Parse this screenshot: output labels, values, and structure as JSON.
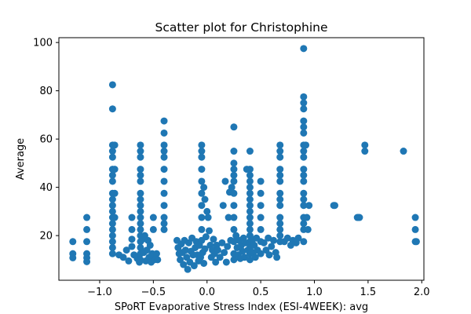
{
  "chart_data": {
    "type": "scatter",
    "title": "Scatter plot for Christophine",
    "xlabel": "SPoRT Evaporative Stress Index (ESI-4WEEK): avg",
    "ylabel": "Average",
    "xlim": [
      -1.38,
      2.02
    ],
    "ylim": [
      1.5,
      102
    ],
    "xticks": [
      -1.0,
      -0.5,
      0.0,
      0.5,
      1.0,
      1.5,
      2.0
    ],
    "xtick_labels": [
      "−1.0",
      "−0.5",
      "0.0",
      "0.5",
      "1.0",
      "1.5",
      "2.0"
    ],
    "yticks": [
      20,
      40,
      60,
      80,
      100
    ],
    "ytick_labels": [
      "20",
      "40",
      "60",
      "80",
      "100"
    ],
    "grid": false,
    "marker_color": "#1f77b4",
    "points": [
      [
        -1.25,
        17.5
      ],
      [
        -1.25,
        12.5
      ],
      [
        -1.25,
        10.8
      ],
      [
        -1.12,
        27.5
      ],
      [
        -1.12,
        22.5
      ],
      [
        -1.12,
        17.5
      ],
      [
        -1.12,
        12.5
      ],
      [
        -1.12,
        10.8
      ],
      [
        -1.12,
        9.2
      ],
      [
        -0.88,
        82.5
      ],
      [
        -0.88,
        72.5
      ],
      [
        -0.88,
        57.5
      ],
      [
        -0.88,
        55
      ],
      [
        -0.88,
        52.5
      ],
      [
        -0.88,
        47.5
      ],
      [
        -0.88,
        45
      ],
      [
        -0.88,
        42.5
      ],
      [
        -0.88,
        37.5
      ],
      [
        -0.88,
        35
      ],
      [
        -0.88,
        32.5
      ],
      [
        -0.88,
        30
      ],
      [
        -0.88,
        27.5
      ],
      [
        -0.88,
        25
      ],
      [
        -0.88,
        22.5
      ],
      [
        -0.88,
        20
      ],
      [
        -0.88,
        17.5
      ],
      [
        -0.88,
        15
      ],
      [
        -0.88,
        12.5
      ],
      [
        -0.86,
        57.5
      ],
      [
        -0.86,
        47.5
      ],
      [
        -0.86,
        37.5
      ],
      [
        -0.86,
        27.5
      ],
      [
        -0.82,
        12
      ],
      [
        -0.78,
        11
      ],
      [
        -0.75,
        14
      ],
      [
        -0.73,
        9.5
      ],
      [
        -0.7,
        27.5
      ],
      [
        -0.7,
        22.5
      ],
      [
        -0.7,
        18.5
      ],
      [
        -0.7,
        15.5
      ],
      [
        -0.68,
        12
      ],
      [
        -0.65,
        10.5
      ],
      [
        -0.63,
        9
      ],
      [
        -0.62,
        57.5
      ],
      [
        -0.62,
        55
      ],
      [
        -0.62,
        52.5
      ],
      [
        -0.62,
        47.5
      ],
      [
        -0.62,
        45
      ],
      [
        -0.62,
        42.5
      ],
      [
        -0.62,
        37.5
      ],
      [
        -0.62,
        35
      ],
      [
        -0.62,
        32.5
      ],
      [
        -0.62,
        30
      ],
      [
        -0.62,
        27.5
      ],
      [
        -0.62,
        25
      ],
      [
        -0.62,
        22.5
      ],
      [
        -0.62,
        20
      ],
      [
        -0.62,
        17.5
      ],
      [
        -0.62,
        15
      ],
      [
        -0.62,
        12.5
      ],
      [
        -0.62,
        10
      ],
      [
        -0.6,
        18.5
      ],
      [
        -0.59,
        13
      ],
      [
        -0.58,
        20
      ],
      [
        -0.57,
        9.5
      ],
      [
        -0.56,
        14
      ],
      [
        -0.55,
        18
      ],
      [
        -0.54,
        11
      ],
      [
        -0.53,
        16
      ],
      [
        -0.52,
        9
      ],
      [
        -0.51,
        12.5
      ],
      [
        -0.5,
        27.5
      ],
      [
        -0.5,
        22.5
      ],
      [
        -0.49,
        10
      ],
      [
        -0.47,
        12.5
      ],
      [
        -0.46,
        10
      ],
      [
        -0.4,
        67.5
      ],
      [
        -0.4,
        62.5
      ],
      [
        -0.4,
        57.5
      ],
      [
        -0.4,
        55
      ],
      [
        -0.4,
        52.5
      ],
      [
        -0.4,
        47.5
      ],
      [
        -0.4,
        42.5
      ],
      [
        -0.4,
        37.5
      ],
      [
        -0.4,
        32.5
      ],
      [
        -0.4,
        27.5
      ],
      [
        -0.4,
        25
      ],
      [
        -0.4,
        22.5
      ],
      [
        -0.28,
        18
      ],
      [
        -0.27,
        15
      ],
      [
        -0.26,
        12.5
      ],
      [
        -0.25,
        10
      ],
      [
        -0.24,
        16.5
      ],
      [
        -0.23,
        13
      ],
      [
        -0.22,
        8
      ],
      [
        -0.21,
        18
      ],
      [
        -0.2,
        14
      ],
      [
        -0.19,
        11
      ],
      [
        -0.18,
        6
      ],
      [
        -0.17,
        17
      ],
      [
        -0.16,
        9
      ],
      [
        -0.15,
        13.5
      ],
      [
        -0.14,
        19
      ],
      [
        -0.13,
        12
      ],
      [
        -0.12,
        7.5
      ],
      [
        -0.11,
        15
      ],
      [
        -0.1,
        17.5
      ],
      [
        -0.09,
        12
      ],
      [
        -0.08,
        9.5
      ],
      [
        -0.07,
        16
      ],
      [
        -0.06,
        11
      ],
      [
        -0.05,
        18
      ],
      [
        -0.04,
        13
      ],
      [
        -0.03,
        8.5
      ],
      [
        -0.02,
        14.5
      ],
      [
        -0.01,
        19.5
      ],
      [
        -0.05,
        57.5
      ],
      [
        -0.05,
        55
      ],
      [
        -0.05,
        52.5
      ],
      [
        -0.05,
        47.5
      ],
      [
        -0.05,
        42.5
      ],
      [
        -0.05,
        37.5
      ],
      [
        -0.05,
        32.5
      ],
      [
        -0.05,
        27.5
      ],
      [
        -0.05,
        22.5
      ],
      [
        -0.03,
        40
      ],
      [
        -0.02,
        35
      ],
      [
        0.0,
        30
      ],
      [
        0.01,
        27.5
      ],
      [
        0.02,
        22
      ],
      [
        0.03,
        16
      ],
      [
        0.04,
        11
      ],
      [
        0.05,
        14
      ],
      [
        0.06,
        18.5
      ],
      [
        0.07,
        12.5
      ],
      [
        0.08,
        9
      ],
      [
        0.09,
        16
      ],
      [
        0.1,
        14
      ],
      [
        0.12,
        11
      ],
      [
        0.14,
        17
      ],
      [
        0.15,
        32.5
      ],
      [
        0.16,
        13
      ],
      [
        0.17,
        42.5
      ],
      [
        0.18,
        9
      ],
      [
        0.19,
        15.5
      ],
      [
        0.2,
        27.5
      ],
      [
        0.21,
        38
      ],
      [
        0.22,
        18
      ],
      [
        0.23,
        40
      ],
      [
        0.25,
        65
      ],
      [
        0.25,
        55
      ],
      [
        0.25,
        50
      ],
      [
        0.25,
        47.5
      ],
      [
        0.25,
        45
      ],
      [
        0.25,
        42.5
      ],
      [
        0.25,
        37.5
      ],
      [
        0.25,
        32.5
      ],
      [
        0.25,
        27.5
      ],
      [
        0.25,
        22.5
      ],
      [
        0.25,
        17.5
      ],
      [
        0.25,
        12.5
      ],
      [
        0.25,
        10
      ],
      [
        0.27,
        20
      ],
      [
        0.28,
        15
      ],
      [
        0.29,
        12
      ],
      [
        0.3,
        18
      ],
      [
        0.31,
        10.5
      ],
      [
        0.32,
        16
      ],
      [
        0.33,
        13.5
      ],
      [
        0.34,
        19
      ],
      [
        0.35,
        11
      ],
      [
        0.36,
        17
      ],
      [
        0.37,
        47.5
      ],
      [
        0.38,
        14
      ],
      [
        0.4,
        55
      ],
      [
        0.4,
        47.5
      ],
      [
        0.4,
        45
      ],
      [
        0.4,
        42.5
      ],
      [
        0.4,
        40
      ],
      [
        0.4,
        37.5
      ],
      [
        0.4,
        35
      ],
      [
        0.4,
        32.5
      ],
      [
        0.4,
        30
      ],
      [
        0.4,
        27.5
      ],
      [
        0.4,
        25
      ],
      [
        0.4,
        22.5
      ],
      [
        0.4,
        20
      ],
      [
        0.4,
        17.5
      ],
      [
        0.4,
        15
      ],
      [
        0.4,
        12.5
      ],
      [
        0.4,
        10
      ],
      [
        0.42,
        18
      ],
      [
        0.43,
        13
      ],
      [
        0.44,
        16
      ],
      [
        0.45,
        11
      ],
      [
        0.46,
        19
      ],
      [
        0.47,
        14
      ],
      [
        0.5,
        42.5
      ],
      [
        0.5,
        37.5
      ],
      [
        0.5,
        32.5
      ],
      [
        0.5,
        27.5
      ],
      [
        0.5,
        22.5
      ],
      [
        0.5,
        17.5
      ],
      [
        0.5,
        12.5
      ],
      [
        0.53,
        17
      ],
      [
        0.55,
        14
      ],
      [
        0.57,
        19
      ],
      [
        0.58,
        12
      ],
      [
        0.6,
        15.5
      ],
      [
        0.62,
        18
      ],
      [
        0.64,
        13
      ],
      [
        0.65,
        11
      ],
      [
        0.68,
        57.5
      ],
      [
        0.68,
        55
      ],
      [
        0.68,
        52.5
      ],
      [
        0.68,
        47.5
      ],
      [
        0.68,
        45
      ],
      [
        0.68,
        42.5
      ],
      [
        0.68,
        37.5
      ],
      [
        0.68,
        35
      ],
      [
        0.68,
        32.5
      ],
      [
        0.68,
        27.5
      ],
      [
        0.68,
        25
      ],
      [
        0.68,
        22.5
      ],
      [
        0.68,
        20
      ],
      [
        0.68,
        17.5
      ],
      [
        0.72,
        17.5
      ],
      [
        0.75,
        19
      ],
      [
        0.78,
        16
      ],
      [
        0.8,
        18
      ],
      [
        0.83,
        17
      ],
      [
        0.85,
        19
      ],
      [
        0.9,
        97.5
      ],
      [
        0.9,
        77.5
      ],
      [
        0.9,
        75
      ],
      [
        0.9,
        72.5
      ],
      [
        0.9,
        67.5
      ],
      [
        0.9,
        65
      ],
      [
        0.9,
        62.5
      ],
      [
        0.9,
        57.5
      ],
      [
        0.9,
        55
      ],
      [
        0.9,
        52.5
      ],
      [
        0.9,
        47.5
      ],
      [
        0.9,
        45
      ],
      [
        0.9,
        42.5
      ],
      [
        0.9,
        37.5
      ],
      [
        0.9,
        35
      ],
      [
        0.9,
        32.5
      ],
      [
        0.9,
        27.5
      ],
      [
        0.9,
        25
      ],
      [
        0.9,
        22.5
      ],
      [
        0.9,
        17.5
      ],
      [
        0.92,
        57.5
      ],
      [
        0.93,
        27.5
      ],
      [
        0.94,
        22.5
      ],
      [
        0.95,
        32.5
      ],
      [
        1.18,
        32.5
      ],
      [
        1.19,
        32.5
      ],
      [
        1.4,
        27.5
      ],
      [
        1.41,
        27.5
      ],
      [
        1.42,
        27.5
      ],
      [
        1.47,
        57.5
      ],
      [
        1.47,
        55
      ],
      [
        1.83,
        55
      ],
      [
        1.94,
        27.5
      ],
      [
        1.94,
        22.5
      ],
      [
        1.94,
        17.5
      ],
      [
        1.95,
        17.5
      ]
    ]
  }
}
